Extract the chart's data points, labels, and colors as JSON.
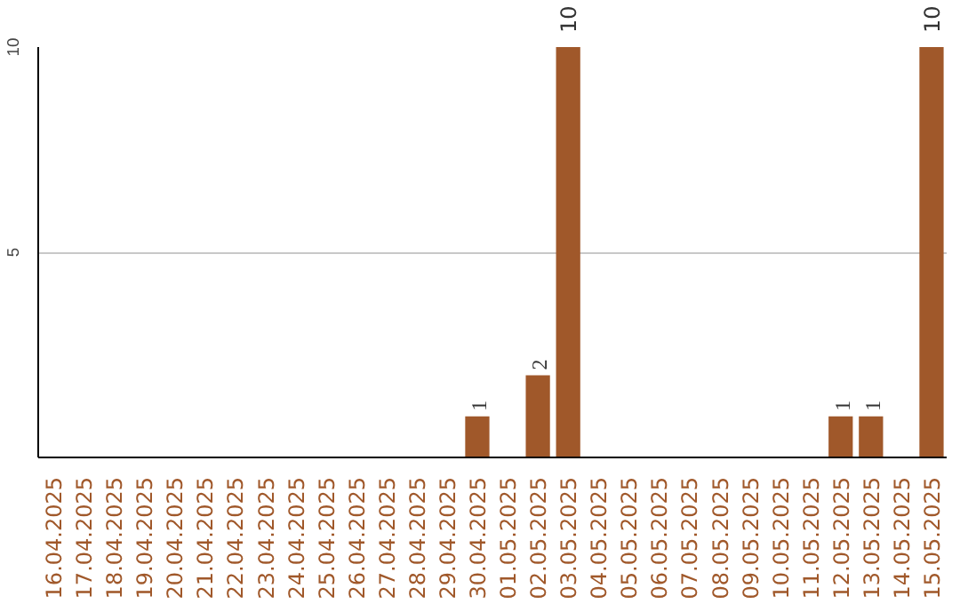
{
  "chart_data": {
    "type": "bar",
    "categories": [
      "16.04.2025",
      "17.04.2025",
      "18.04.2025",
      "19.04.2025",
      "20.04.2025",
      "21.04.2025",
      "22.04.2025",
      "23.04.2025",
      "24.04.2025",
      "25.04.2025",
      "26.04.2025",
      "27.04.2025",
      "28.04.2025",
      "29.04.2025",
      "30.04.2025",
      "01.05.2025",
      "02.05.2025",
      "03.05.2025",
      "04.05.2025",
      "05.05.2025",
      "06.05.2025",
      "07.05.2025",
      "08.05.2025",
      "09.05.2025",
      "10.05.2025",
      "11.05.2025",
      "12.05.2025",
      "13.05.2025",
      "14.05.2025",
      "15.05.2025"
    ],
    "values": [
      0,
      0,
      0,
      0,
      0,
      0,
      0,
      0,
      0,
      0,
      0,
      0,
      0,
      0,
      1,
      0,
      2,
      10,
      0,
      0,
      0,
      0,
      0,
      0,
      0,
      0,
      1,
      1,
      0,
      10
    ],
    "value_labels": [
      null,
      null,
      null,
      null,
      null,
      null,
      null,
      null,
      null,
      null,
      null,
      null,
      null,
      null,
      "1",
      null,
      "2",
      "10",
      null,
      null,
      null,
      null,
      null,
      null,
      null,
      null,
      "1",
      "1",
      null,
      "10"
    ],
    "color": "#a0582a",
    "ylim": [
      0,
      10
    ],
    "yticks": [
      5,
      10
    ],
    "grid": "y"
  }
}
